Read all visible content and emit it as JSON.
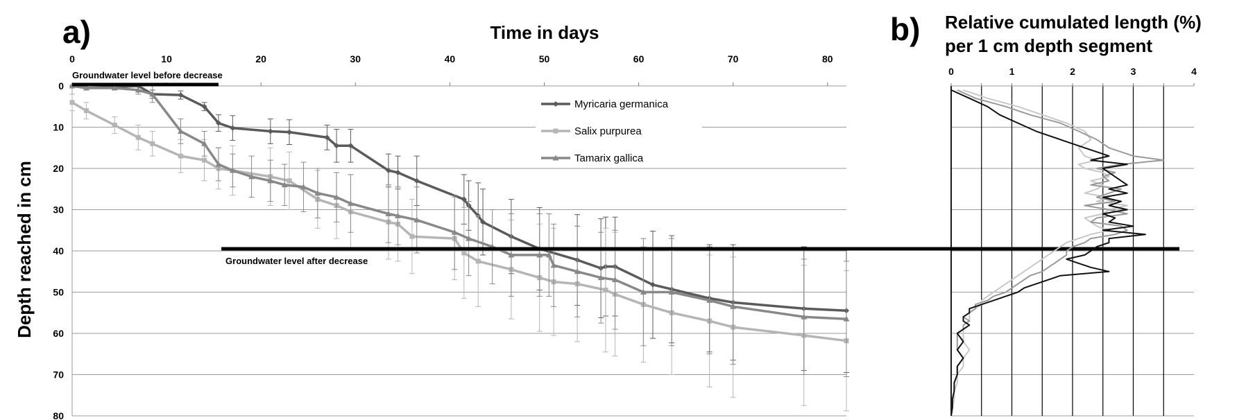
{
  "panel_a_label": "a)",
  "panel_b_label": "b)",
  "chart_data": [
    {
      "type": "line",
      "panel": "a)",
      "xlabel": "Time in days",
      "ylabel": "Depth reached  in cm",
      "xlim": [
        0,
        82
      ],
      "ylim": [
        0,
        80
      ],
      "y_inverted": true,
      "x_ticks": [
        0,
        10,
        20,
        30,
        40,
        50,
        60,
        70,
        80
      ],
      "y_ticks": [
        0,
        10,
        20,
        30,
        40,
        50,
        60,
        70,
        80
      ],
      "grid": "horizontal",
      "legend_position": "top-center",
      "annotations": [
        {
          "text": "Groundwater level before decrease",
          "depth": 0,
          "x_from": 0,
          "x_to": 15.5
        },
        {
          "text": "Groundwater level after decrease",
          "depth": 39.5,
          "x_from": 15.8,
          "x_to": 82
        }
      ],
      "series": [
        {
          "name": "Myricaria germanica",
          "color": "#5a5a5a",
          "x": [
            0,
            1.5,
            4.5,
            7,
            8.5,
            11.5,
            14,
            15.5,
            17,
            21,
            23,
            27,
            28,
            29.5,
            33.5,
            34.5,
            36.5,
            41.5,
            42,
            43,
            43.5,
            46.5,
            49.5,
            53.5,
            56,
            56.5,
            57.5,
            61.5,
            63.5,
            67.5,
            70,
            77.5,
            82
          ],
          "y": [
            0,
            0.5,
            0.3,
            0,
            2,
            2.2,
            5,
            9,
            10.2,
            11,
            11.2,
            12.5,
            14.5,
            14.5,
            20.5,
            21,
            23,
            27.5,
            29,
            31.5,
            33,
            36.5,
            39.5,
            42.2,
            44.2,
            43.8,
            43.8,
            48.2,
            49.3,
            51.5,
            52.5,
            54,
            54.5
          ],
          "err": [
            0,
            0.5,
            0.5,
            1,
            1,
            1,
            1,
            2,
            3,
            3,
            3,
            3,
            4,
            4,
            4,
            4,
            6,
            6,
            6,
            8,
            8,
            9,
            10,
            11,
            12,
            12,
            12,
            13,
            13,
            13,
            14,
            15,
            15
          ]
        },
        {
          "name": "Salix purpurea",
          "color": "#b5b5b5",
          "x": [
            0,
            1.5,
            4.5,
            7,
            8.5,
            11.5,
            14,
            15.5,
            17,
            21,
            23,
            26,
            28,
            29.5,
            33.5,
            34.5,
            36,
            40.5,
            41.5,
            43,
            46.5,
            49.5,
            51,
            53.5,
            56.5,
            57.5,
            60.5,
            63.5,
            67.5,
            70,
            77.5,
            82
          ],
          "y": [
            4,
            6,
            9.5,
            12.5,
            14,
            17,
            18,
            20,
            20.5,
            22,
            23,
            27.5,
            29,
            30.5,
            33,
            33.5,
            36.5,
            37,
            40.5,
            42.5,
            44.5,
            46.5,
            47.5,
            48,
            49.5,
            50.5,
            53,
            55,
            57,
            58.5,
            60.5,
            61.8
          ],
          "err": [
            2,
            2,
            2,
            3,
            3,
            4,
            5,
            5,
            6,
            7,
            7,
            7,
            8,
            9,
            9,
            9,
            9,
            10,
            11,
            11,
            12,
            13,
            13,
            14,
            15,
            15,
            14,
            15,
            16,
            17,
            17,
            17
          ]
        },
        {
          "name": "Tamarix gallica",
          "color": "#888888",
          "x": [
            0,
            1.5,
            4.5,
            7,
            8.5,
            11.5,
            14,
            15.5,
            17,
            19,
            21,
            22.5,
            24.5,
            26,
            28,
            29.5,
            33.5,
            34.5,
            36.5,
            40.5,
            42,
            44.5,
            46.5,
            49.5,
            50.5,
            51,
            53.5,
            56,
            57.5,
            60.5,
            63.5,
            67.5,
            70,
            77.5,
            82
          ],
          "y": [
            0,
            0.5,
            0.5,
            1,
            2,
            11,
            14,
            19,
            20.5,
            22,
            23,
            24,
            24.5,
            26,
            27,
            28.5,
            31,
            31.5,
            32.5,
            35.5,
            37,
            39,
            41,
            41,
            41,
            43.5,
            45,
            46.5,
            47,
            50,
            50,
            52,
            53.5,
            56,
            56.5
          ],
          "err": [
            0,
            0.5,
            0.5,
            1,
            2,
            3,
            3,
            4,
            4,
            5,
            5,
            5,
            6,
            6,
            6,
            7,
            7,
            7,
            8,
            9,
            9,
            9,
            10,
            10,
            10,
            10,
            11,
            11,
            12,
            13,
            13,
            13,
            14,
            14,
            14
          ]
        }
      ]
    },
    {
      "type": "line",
      "panel": "b)",
      "title": "Relative cumulated length (%) per 1 cm depth segment",
      "xlim": [
        0,
        4
      ],
      "ylim": [
        0,
        80
      ],
      "y_inverted": true,
      "x_ticks": [
        0,
        1,
        2,
        3,
        4
      ],
      "x_tick_labels": [
        "0",
        "1",
        "2",
        "3",
        "4"
      ],
      "grid": "vertical every 0.5, horizontal",
      "series": [
        {
          "name": "",
          "color": "#111111",
          "depth": [
            1,
            3,
            5,
            7,
            9,
            11,
            13,
            15,
            17,
            18,
            19,
            20,
            21,
            22,
            23,
            24,
            25,
            26,
            27,
            28,
            29,
            30,
            31,
            32,
            33,
            34,
            35,
            36,
            37,
            38,
            39,
            40,
            41,
            42,
            43,
            44,
            45,
            46,
            47,
            48,
            49,
            50,
            51,
            52,
            53,
            54,
            55,
            56,
            57,
            58,
            59,
            60,
            62,
            64,
            66,
            68,
            70,
            72,
            74,
            76,
            78,
            80
          ],
          "value": [
            0,
            0.3,
            0.6,
            0.8,
            1.1,
            1.4,
            1.8,
            2.2,
            2.6,
            2.3,
            2.9,
            2.5,
            2.6,
            2.7,
            2.8,
            2.9,
            2.6,
            2.9,
            2.5,
            2.8,
            2.6,
            2.9,
            2.5,
            2.7,
            2.6,
            3.0,
            2.5,
            3.2,
            2.6,
            2.6,
            2.4,
            2.3,
            2.2,
            1.9,
            2.1,
            2.3,
            2.6,
            1.8,
            1.6,
            1.4,
            1.2,
            1.1,
            0.9,
            0.7,
            0.5,
            0.3,
            0.3,
            0.2,
            0.2,
            0.3,
            0.2,
            0.1,
            0.2,
            0.1,
            0.2,
            0.1,
            0.1,
            0.05,
            0.05,
            0.02,
            0.02,
            0
          ]
        },
        {
          "name": "",
          "color": "#999999",
          "depth": [
            1,
            3,
            5,
            7,
            9,
            11,
            13,
            15,
            17,
            18,
            19,
            20,
            21,
            22,
            23,
            24,
            25,
            26,
            27,
            28,
            29,
            30,
            31,
            32,
            33,
            34,
            35,
            36,
            37,
            38,
            39,
            40,
            41,
            42,
            43,
            44,
            45,
            46,
            47,
            48,
            49,
            50,
            51,
            52,
            53,
            54,
            55,
            56,
            57,
            58,
            59,
            60,
            62,
            64,
            66,
            68,
            70,
            72,
            74,
            76,
            78,
            80
          ],
          "value": [
            0.1,
            0.4,
            0.9,
            1.3,
            1.8,
            2.1,
            2.4,
            2.6,
            3.0,
            3.5,
            2.8,
            2.4,
            2.7,
            2.5,
            2.6,
            2.3,
            2.8,
            2.6,
            2.4,
            2.7,
            2.2,
            2.6,
            2.9,
            2.4,
            2.3,
            2.8,
            2.9,
            2.7,
            2.3,
            2.2,
            2.0,
            1.9,
            1.9,
            1.8,
            1.7,
            1.6,
            1.5,
            1.3,
            1.2,
            1.1,
            1.0,
            0.9,
            0.7,
            0.6,
            0.4,
            0.4,
            0.3,
            0.2,
            0.3,
            0.2,
            0.2,
            0.1,
            0.1,
            0.1,
            0.2,
            0.1,
            0.1,
            0.05,
            0.05,
            0.02,
            0.02,
            0
          ]
        },
        {
          "name": "",
          "color": "#c8c8c8",
          "depth": [
            1,
            3,
            5,
            7,
            9,
            11,
            13,
            15,
            17,
            18,
            19,
            20,
            21,
            22,
            23,
            24,
            25,
            26,
            27,
            28,
            29,
            30,
            31,
            32,
            33,
            34,
            35,
            36,
            37,
            38,
            39,
            40,
            41,
            42,
            43,
            44,
            45,
            46,
            47,
            48,
            49,
            50,
            51,
            52,
            53,
            54,
            55,
            56,
            57,
            58,
            59,
            60,
            62,
            64,
            66,
            68,
            70,
            72,
            74,
            76,
            78,
            80
          ],
          "value": [
            0.2,
            0.6,
            1.1,
            1.5,
            1.9,
            2.2,
            2.3,
            2.1,
            2.2,
            2.4,
            2.1,
            2.2,
            2.5,
            2.6,
            2.3,
            2.5,
            2.4,
            2.2,
            2.6,
            2.4,
            2.9,
            2.6,
            2.5,
            2.2,
            2.3,
            2.4,
            2.6,
            2.3,
            2.1,
            1.9,
            1.8,
            1.7,
            1.6,
            1.5,
            1.4,
            1.3,
            1.2,
            1.1,
            1.0,
            0.9,
            0.8,
            0.7,
            0.6,
            0.5,
            0.5,
            0.4,
            0.3,
            0.3,
            0.3,
            0.2,
            0.2,
            0.2,
            0.2,
            0.3,
            0.2,
            0.2,
            0.1,
            0.1,
            0.05,
            0.05,
            0.02,
            0
          ]
        }
      ]
    }
  ]
}
